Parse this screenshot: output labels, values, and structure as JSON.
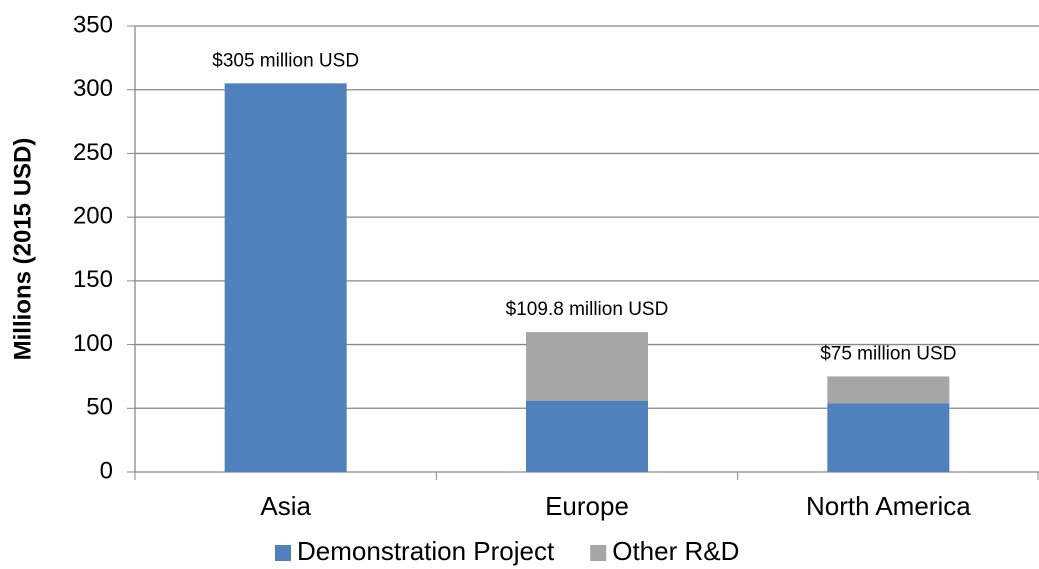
{
  "chart_data": {
    "type": "stacked_bar",
    "y_label": "Millions (2015 USD)",
    "categories": [
      "Asia",
      "Europe",
      "North America"
    ],
    "series": [
      {
        "name": "Demonstration Project",
        "color": "#4f81bd",
        "values": [
          305,
          56,
          54
        ]
      },
      {
        "name": "Other R&D",
        "color": "#a6a6a6",
        "values": [
          0,
          53.8,
          21
        ]
      }
    ],
    "annotations": [
      "$305 million USD",
      "$109.8 million USD",
      "$75 million USD"
    ],
    "ylim": [
      0,
      350
    ],
    "yticks": [
      0,
      50,
      100,
      150,
      200,
      250,
      300,
      350
    ],
    "grid": true,
    "legend": "bottom"
  }
}
